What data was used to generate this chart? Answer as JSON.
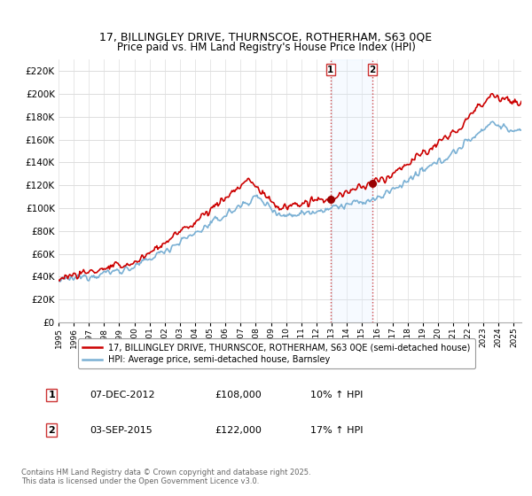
{
  "title_line1": "17, BILLINGLEY DRIVE, THURNSCOE, ROTHERHAM, S63 0QE",
  "title_line2": "Price paid vs. HM Land Registry's House Price Index (HPI)",
  "legend_line1": "17, BILLINGLEY DRIVE, THURNSCOE, ROTHERHAM, S63 0QE (semi-detached house)",
  "legend_line2": "HPI: Average price, semi-detached house, Barnsley",
  "annotation1_date": "07-DEC-2012",
  "annotation1_price": "£108,000",
  "annotation1_hpi": "10% ↑ HPI",
  "annotation2_date": "03-SEP-2015",
  "annotation2_price": "£122,000",
  "annotation2_hpi": "17% ↑ HPI",
  "footer": "Contains HM Land Registry data © Crown copyright and database right 2025.\nThis data is licensed under the Open Government Licence v3.0.",
  "red_color": "#cc0000",
  "blue_color": "#7ab0d4",
  "marker_color": "#990000",
  "vline_color": "#cc3333",
  "span_color": "#ddeeff",
  "background_color": "#ffffff",
  "grid_color": "#dddddd",
  "ylim": [
    0,
    230000
  ],
  "yticks": [
    0,
    20000,
    40000,
    60000,
    80000,
    100000,
    120000,
    140000,
    160000,
    180000,
    200000,
    220000
  ],
  "ytick_labels": [
    "£0",
    "£20K",
    "£40K",
    "£60K",
    "£80K",
    "£100K",
    "£120K",
    "£140K",
    "£160K",
    "£180K",
    "£200K",
    "£220K"
  ],
  "sale1_year": 2012.92,
  "sale1_price": 108000,
  "sale2_year": 2015.67,
  "sale2_price": 122000,
  "xmin": 1995,
  "xmax": 2025.5
}
